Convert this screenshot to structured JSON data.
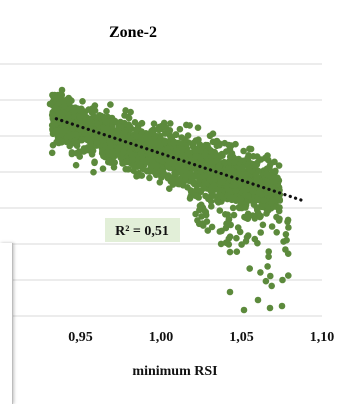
{
  "colors": {
    "points": "#5c8a3c",
    "grid": "#d9d9d9",
    "trend": "#111111",
    "label_bg": "#e2efd8"
  },
  "chart_data": {
    "type": "scatter",
    "title": "Zone-2",
    "xlabel": "minimum  RSI",
    "ylabel": "",
    "xlim": [
      0.9,
      1.1
    ],
    "x_ticks": [
      "0,95",
      "1,00",
      "1,05",
      "1,10"
    ],
    "x_tick_values": [
      0.95,
      1.0,
      1.05,
      1.1
    ],
    "grid": "horizontal",
    "trendline": {
      "style": "dotted",
      "x": [
        0.935,
        1.088
      ]
    },
    "annotation": "R² = 0,51"
  }
}
